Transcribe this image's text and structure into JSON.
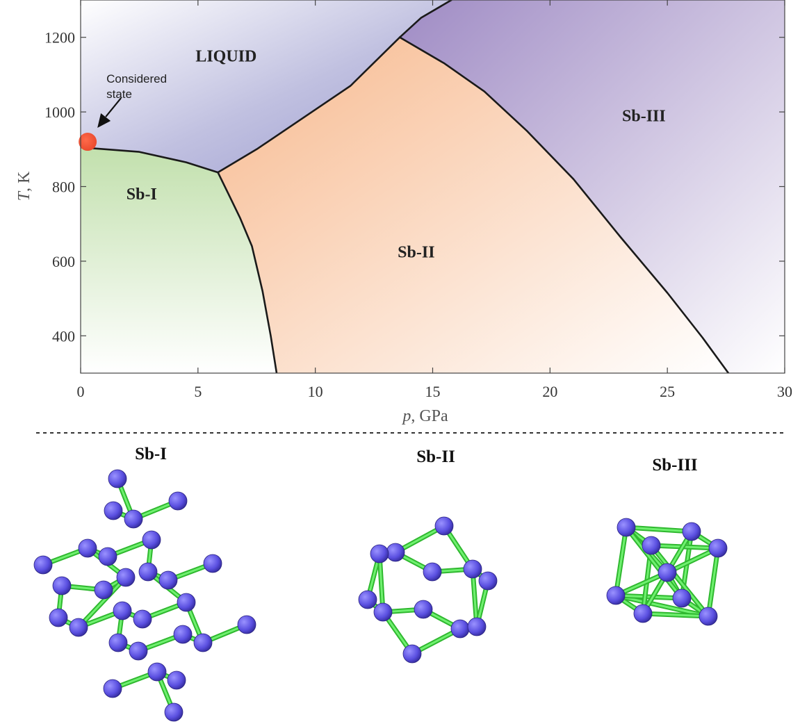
{
  "chart_data": {
    "type": "phase-diagram",
    "xlabel_var": "p",
    "xlabel_unit": ", GPa",
    "ylabel_var": "T",
    "ylabel_unit": ", K",
    "xlim": [
      0,
      30
    ],
    "ylim": [
      300,
      1300
    ],
    "xticks": [
      "0",
      "5",
      "10",
      "15",
      "20",
      "25",
      "30"
    ],
    "yticks": [
      "400",
      "600",
      "800",
      "1000",
      "1200"
    ],
    "phases": [
      {
        "name": "LIQUID",
        "color": "#b6b6dc",
        "label_at": [
          6.2,
          1150
        ]
      },
      {
        "name": "Sb-I",
        "color": "#c7e3b4",
        "label_at": [
          2.6,
          780
        ]
      },
      {
        "name": "Sb-II",
        "color": "#f8c49c",
        "label_at": [
          14.3,
          625
        ]
      },
      {
        "name": "Sb-III",
        "color": "#ad9aca",
        "label_at": [
          24.0,
          990
        ]
      }
    ],
    "boundaries": [
      {
        "name": "Sb-I/LIQUID",
        "points": [
          [
            0,
            905
          ],
          [
            2.5,
            893
          ],
          [
            4.5,
            865
          ],
          [
            5.85,
            838
          ]
        ]
      },
      {
        "name": "Sb-I/Sb-II",
        "points": [
          [
            5.85,
            838
          ],
          [
            6.3,
            780
          ],
          [
            6.8,
            715
          ],
          [
            7.3,
            640
          ],
          [
            7.75,
            520
          ],
          [
            8.1,
            400
          ],
          [
            8.35,
            300
          ]
        ]
      },
      {
        "name": "LIQUID/Sb-II",
        "points": [
          [
            5.85,
            838
          ],
          [
            7.5,
            900
          ],
          [
            9.5,
            985
          ],
          [
            11.5,
            1070
          ],
          [
            13.6,
            1200
          ]
        ]
      },
      {
        "name": "LIQUID/Sb-III",
        "points": [
          [
            13.6,
            1200
          ],
          [
            14.5,
            1252
          ],
          [
            15.8,
            1300
          ]
        ]
      },
      {
        "name": "Sb-II/Sb-III",
        "points": [
          [
            13.6,
            1200
          ],
          [
            15.5,
            1130
          ],
          [
            17.2,
            1055
          ],
          [
            19.0,
            950
          ],
          [
            21.0,
            820
          ],
          [
            23.0,
            665
          ],
          [
            25.0,
            515
          ],
          [
            26.5,
            395
          ],
          [
            27.6,
            300
          ]
        ]
      }
    ],
    "state_point": {
      "p": 0.3,
      "T": 920,
      "label_line1": "Considered",
      "label_line2": "state",
      "color": "#e8462a"
    }
  },
  "structures_section": {
    "titles": [
      "Sb-I",
      "Sb-II",
      "Sb-III"
    ],
    "atom_color": "#5a4fe0",
    "bond_color": "#3fdc3f"
  }
}
